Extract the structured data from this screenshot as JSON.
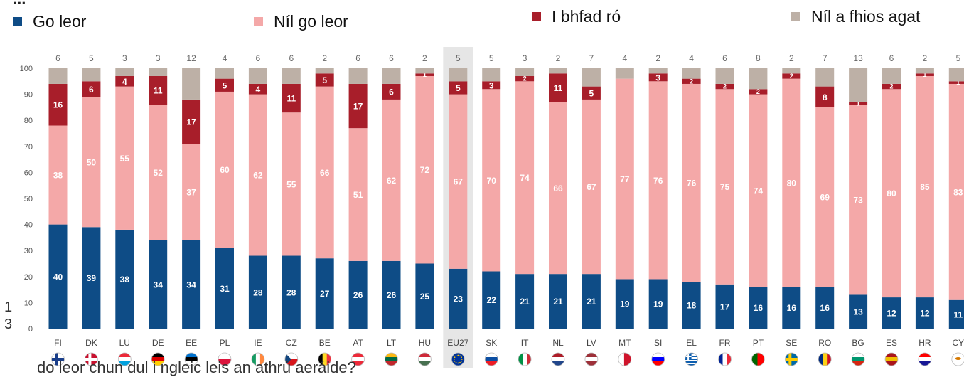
{
  "title_fragment": "...",
  "bottom_caption": "do leor chun dul i ngleic leis an athrú aeráide?",
  "left_fragment": "1 3",
  "colors": {
    "go_leor": "#0E4C86",
    "nil_go_leor": "#F4A8A8",
    "i_bhfad_ro": "#A81E2A",
    "nil_a_fhios": "#BDB0A6",
    "eu_highlight": "#E6E6E6"
  },
  "legend": [
    {
      "label": "Go leor",
      "color_key": "go_leor"
    },
    {
      "label": "Níl go leor",
      "color_key": "nil_go_leor"
    },
    {
      "label": "I bhfad ró",
      "color_key": "i_bhfad_ro"
    },
    {
      "label": "Níl a fhios agat",
      "color_key": "nil_a_fhios"
    }
  ],
  "chart_data": {
    "type": "bar",
    "stacked": true,
    "ylim": [
      0,
      100
    ],
    "yticks": [
      0,
      10,
      20,
      30,
      40,
      50,
      60,
      70,
      80,
      90,
      100
    ],
    "highlight_category": "EU27",
    "categories": [
      "FI",
      "DK",
      "LU",
      "DE",
      "EE",
      "PL",
      "IE",
      "CZ",
      "BE",
      "AT",
      "LT",
      "HU",
      "EU27",
      "SK",
      "IT",
      "NL",
      "LV",
      "MT",
      "SI",
      "EL",
      "FR",
      "PT",
      "SE",
      "RO",
      "BG",
      "ES",
      "HR",
      "CY"
    ],
    "flags": [
      {
        "type": "nordic",
        "c1": "#ffffff",
        "c2": "#1a3e8a"
      },
      {
        "type": "nordic",
        "c1": "#c8102e",
        "c2": "#ffffff"
      },
      {
        "type": "h3",
        "c1": "#ed2939",
        "c2": "#ffffff",
        "c3": "#00a1de"
      },
      {
        "type": "h3",
        "c1": "#000000",
        "c2": "#dd0000",
        "c3": "#ffce00"
      },
      {
        "type": "h3",
        "c1": "#0072ce",
        "c2": "#000000",
        "c3": "#ffffff"
      },
      {
        "type": "h2",
        "c1": "#ffffff",
        "c2": "#dc143c"
      },
      {
        "type": "v3",
        "c1": "#169b62",
        "c2": "#ffffff",
        "c3": "#ff883e"
      },
      {
        "type": "h2",
        "c1": "#ffffff",
        "c2": "#d7141a",
        "c3": "#11457e"
      },
      {
        "type": "v3",
        "c1": "#000000",
        "c2": "#fdda24",
        "c3": "#ef3340"
      },
      {
        "type": "h3",
        "c1": "#ed2939",
        "c2": "#ffffff",
        "c3": "#ed2939"
      },
      {
        "type": "h3",
        "c1": "#fdb913",
        "c2": "#006a44",
        "c3": "#c1272d"
      },
      {
        "type": "h3",
        "c1": "#ce2939",
        "c2": "#ffffff",
        "c3": "#477050"
      },
      {
        "type": "eu",
        "c1": "#003399",
        "c2": "#ffcc00"
      },
      {
        "type": "h3",
        "c1": "#ffffff",
        "c2": "#0b4ea2",
        "c3": "#ee1c25"
      },
      {
        "type": "v3",
        "c1": "#009246",
        "c2": "#ffffff",
        "c3": "#ce2b37"
      },
      {
        "type": "h3",
        "c1": "#ae1c28",
        "c2": "#ffffff",
        "c3": "#21468b"
      },
      {
        "type": "h3",
        "c1": "#9e3039",
        "c2": "#ffffff",
        "c3": "#9e3039"
      },
      {
        "type": "v2",
        "c1": "#ffffff",
        "c2": "#cf142b"
      },
      {
        "type": "h3",
        "c1": "#ffffff",
        "c2": "#0000ff",
        "c3": "#ff0000"
      },
      {
        "type": "stripes",
        "c1": "#0d5eaf",
        "c2": "#ffffff"
      },
      {
        "type": "v3",
        "c1": "#002395",
        "c2": "#ffffff",
        "c3": "#ed2939"
      },
      {
        "type": "v2",
        "c1": "#006600",
        "c2": "#ff0000"
      },
      {
        "type": "nordic",
        "c1": "#006aa7",
        "c2": "#fecc00"
      },
      {
        "type": "v3",
        "c1": "#002b7f",
        "c2": "#fcd116",
        "c3": "#ce1126"
      },
      {
        "type": "h3",
        "c1": "#ffffff",
        "c2": "#00966e",
        "c3": "#d62612"
      },
      {
        "type": "h3",
        "c1": "#aa151b",
        "c2": "#f1bf00",
        "c3": "#aa151b"
      },
      {
        "type": "h3",
        "c1": "#ff0000",
        "c2": "#ffffff",
        "c3": "#171796"
      },
      {
        "type": "plain",
        "c1": "#ffffff",
        "c2": "#d57800"
      }
    ],
    "series": [
      {
        "name": "Go leor",
        "color_key": "go_leor",
        "label_color": "#ffffff",
        "values": [
          40,
          39,
          38,
          34,
          34,
          31,
          28,
          28,
          27,
          26,
          26,
          25,
          23,
          22,
          21,
          21,
          21,
          19,
          19,
          18,
          17,
          16,
          16,
          16,
          13,
          12,
          12,
          11
        ]
      },
      {
        "name": "Níl go leor",
        "color_key": "nil_go_leor",
        "label_color": "#ffffff",
        "values": [
          38,
          50,
          55,
          52,
          37,
          60,
          62,
          55,
          66,
          51,
          62,
          72,
          67,
          70,
          74,
          66,
          67,
          77,
          76,
          76,
          75,
          74,
          80,
          69,
          73,
          80,
          85,
          83
        ]
      },
      {
        "name": "I bhfad ró",
        "color_key": "i_bhfad_ro",
        "label_color": "#ffffff",
        "values": [
          16,
          6,
          4,
          11,
          17,
          5,
          4,
          11,
          5,
          17,
          6,
          1,
          5,
          3,
          2,
          11,
          5,
          0,
          3,
          2,
          2,
          2,
          2,
          8,
          1,
          2,
          1,
          1
        ]
      },
      {
        "name": "Níl a fhios agat",
        "color_key": "nil_a_fhios",
        "label_color": "#666666",
        "values": [
          6,
          5,
          3,
          3,
          12,
          4,
          6,
          6,
          2,
          6,
          6,
          2,
          5,
          5,
          3,
          2,
          7,
          4,
          2,
          4,
          6,
          8,
          2,
          7,
          13,
          6,
          2,
          5
        ]
      }
    ]
  }
}
